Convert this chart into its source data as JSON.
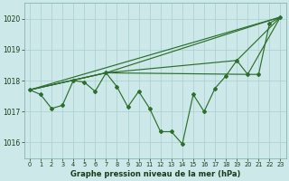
{
  "title": "Graphe pression niveau de la mer (hPa)",
  "background_color": "#cce8e8",
  "grid_color": "#aacece",
  "line_color": "#2d6e2d",
  "xlim": [
    -0.5,
    23.5
  ],
  "ylim": [
    1015.5,
    1020.5
  ],
  "yticks": [
    1016,
    1017,
    1018,
    1019,
    1020
  ],
  "xticks": [
    0,
    1,
    2,
    3,
    4,
    5,
    6,
    7,
    8,
    9,
    10,
    11,
    12,
    13,
    14,
    15,
    16,
    17,
    18,
    19,
    20,
    21,
    22,
    23
  ],
  "y_main": [
    1017.7,
    1017.55,
    1017.1,
    1017.2,
    1018.0,
    1017.95,
    1017.65,
    1018.25,
    1017.8,
    1017.15,
    1017.65,
    1017.1,
    1016.35,
    1016.35,
    1015.95,
    1017.55,
    1017.0,
    1017.75,
    1018.15,
    1018.65,
    1018.2,
    1018.2,
    1019.85,
    1020.05
  ],
  "trend_lines": [
    {
      "x": [
        0,
        23
      ],
      "y": [
        1017.7,
        1020.05
      ]
    },
    {
      "x": [
        0,
        7,
        23
      ],
      "y": [
        1017.7,
        1018.25,
        1020.05
      ]
    },
    {
      "x": [
        0,
        7,
        19,
        23
      ],
      "y": [
        1017.7,
        1018.25,
        1018.65,
        1020.05
      ]
    },
    {
      "x": [
        0,
        7,
        20,
        23
      ],
      "y": [
        1017.7,
        1018.25,
        1018.2,
        1020.05
      ]
    }
  ]
}
